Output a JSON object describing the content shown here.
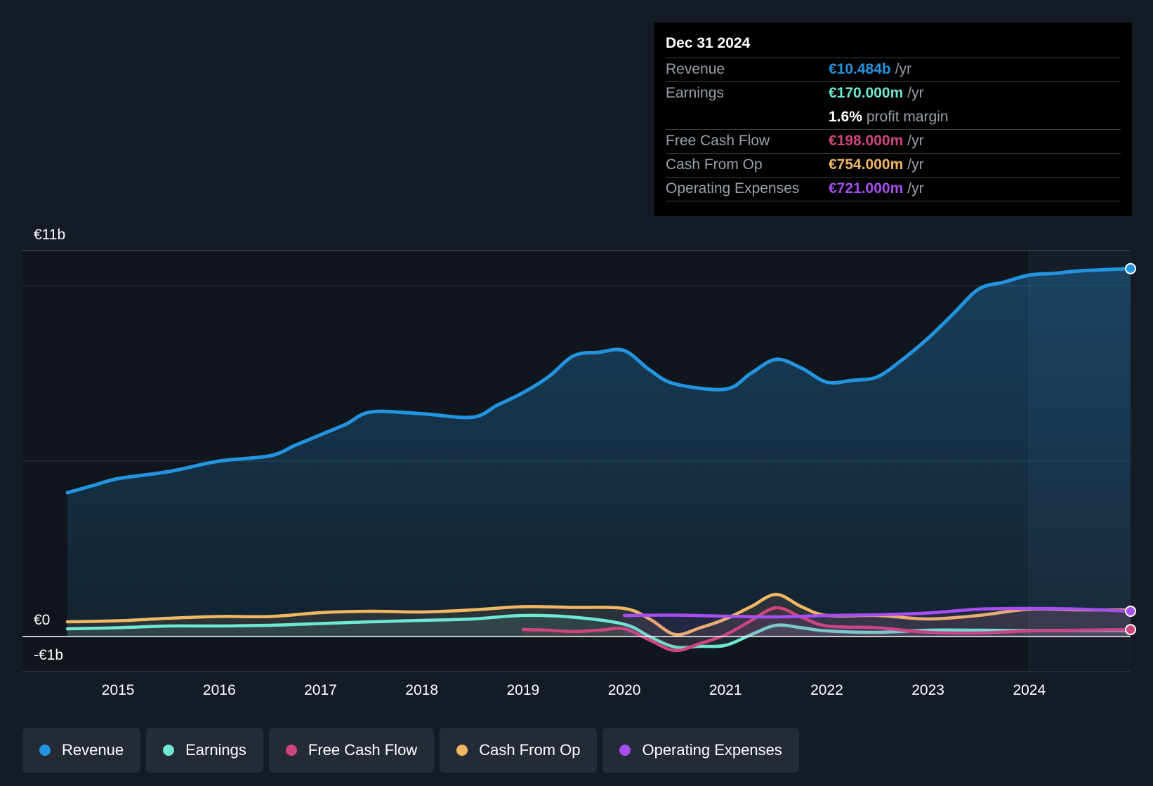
{
  "tooltip": {
    "date": "Dec 31 2024",
    "rows": [
      {
        "label": "Revenue",
        "value": "€10.484b",
        "unit": "/yr",
        "color": "#2394df"
      },
      {
        "label": "Earnings",
        "value": "€170.000m",
        "unit": "/yr",
        "color": "#6ee7d3"
      },
      {
        "label": "",
        "value": "1.6%",
        "unit": "profit margin",
        "color": "#ffffff"
      },
      {
        "label": "Free Cash Flow",
        "value": "€198.000m",
        "unit": "/yr",
        "color": "#d0457b"
      },
      {
        "label": "Cash From Op",
        "value": "€754.000m",
        "unit": "/yr",
        "color": "#f2b763"
      },
      {
        "label": "Operating Expenses",
        "value": "€721.000m",
        "unit": "/yr",
        "color": "#a54ff0"
      }
    ]
  },
  "legend": [
    {
      "label": "Revenue",
      "color": "#2394df"
    },
    {
      "label": "Earnings",
      "color": "#6ee7d3"
    },
    {
      "label": "Free Cash Flow",
      "color": "#d0457b"
    },
    {
      "label": "Cash From Op",
      "color": "#f2b763"
    },
    {
      "label": "Operating Expenses",
      "color": "#a54ff0"
    }
  ],
  "chart_data": {
    "type": "line",
    "title": "",
    "xlabel": "",
    "ylabel": "",
    "y_tick_labels": [
      "€11b",
      "€0",
      "-€1b"
    ],
    "x_tick_labels": [
      "2015",
      "2016",
      "2017",
      "2018",
      "2019",
      "2020",
      "2021",
      "2022",
      "2023",
      "2024"
    ],
    "xlim": [
      2014.5,
      2025.0
    ],
    "ylim": [
      -1,
      11
    ],
    "highlight_from": 2024.0,
    "series": [
      {
        "name": "Revenue",
        "color": "#2394df",
        "area": true,
        "x": [
          2014.5,
          2014.75,
          2015.0,
          2015.5,
          2016.0,
          2016.5,
          2016.75,
          2017.0,
          2017.25,
          2017.5,
          2018.0,
          2018.5,
          2018.75,
          2019.0,
          2019.25,
          2019.5,
          2019.75,
          2020.0,
          2020.25,
          2020.5,
          2021.0,
          2021.25,
          2021.5,
          2021.75,
          2022.0,
          2022.25,
          2022.5,
          2022.75,
          2023.0,
          2023.25,
          2023.5,
          2023.75,
          2024.0,
          2024.25,
          2024.5,
          2025.0
        ],
        "values": [
          4.1,
          4.3,
          4.5,
          4.7,
          5.0,
          5.15,
          5.45,
          5.75,
          6.05,
          6.4,
          6.35,
          6.25,
          6.6,
          6.95,
          7.4,
          8.0,
          8.1,
          8.15,
          7.6,
          7.2,
          7.05,
          7.5,
          7.9,
          7.65,
          7.25,
          7.3,
          7.4,
          7.9,
          8.5,
          9.2,
          9.9,
          10.1,
          10.3,
          10.35,
          10.42,
          10.484
        ]
      },
      {
        "name": "Cash From Op",
        "color": "#f2b763",
        "x": [
          2014.5,
          2015.0,
          2015.5,
          2016.0,
          2016.5,
          2017.0,
          2017.5,
          2018.0,
          2018.5,
          2019.0,
          2019.5,
          2020.0,
          2020.25,
          2020.5,
          2020.75,
          2021.0,
          2021.25,
          2021.5,
          2021.75,
          2022.0,
          2022.5,
          2023.0,
          2023.5,
          2024.0,
          2024.5,
          2025.0
        ],
        "values": [
          0.42,
          0.45,
          0.52,
          0.57,
          0.57,
          0.68,
          0.72,
          0.7,
          0.76,
          0.85,
          0.83,
          0.8,
          0.5,
          0.06,
          0.25,
          0.5,
          0.85,
          1.2,
          0.85,
          0.6,
          0.6,
          0.5,
          0.6,
          0.78,
          0.76,
          0.754
        ]
      },
      {
        "name": "Earnings",
        "color": "#6ee7d3",
        "x": [
          2014.5,
          2015.0,
          2015.5,
          2016.0,
          2016.5,
          2017.0,
          2017.5,
          2018.0,
          2018.5,
          2019.0,
          2019.5,
          2020.0,
          2020.25,
          2020.5,
          2020.75,
          2021.0,
          2021.25,
          2021.5,
          2021.75,
          2022.0,
          2022.5,
          2023.0,
          2023.5,
          2024.0,
          2024.5,
          2025.0
        ],
        "values": [
          0.22,
          0.25,
          0.3,
          0.3,
          0.32,
          0.37,
          0.42,
          0.46,
          0.5,
          0.6,
          0.55,
          0.35,
          0.0,
          -0.3,
          -0.28,
          -0.25,
          0.05,
          0.32,
          0.25,
          0.16,
          0.12,
          0.18,
          0.18,
          0.17,
          0.17,
          0.17
        ]
      },
      {
        "name": "Free Cash Flow",
        "color": "#d0457b",
        "x": [
          2019.0,
          2019.25,
          2019.5,
          2019.75,
          2020.0,
          2020.25,
          2020.5,
          2020.75,
          2021.0,
          2021.25,
          2021.5,
          2021.75,
          2022.0,
          2022.5,
          2023.0,
          2023.5,
          2024.0,
          2024.5,
          2025.0
        ],
        "values": [
          0.2,
          0.18,
          0.14,
          0.18,
          0.22,
          -0.1,
          -0.4,
          -0.2,
          0.05,
          0.45,
          0.82,
          0.55,
          0.3,
          0.25,
          0.12,
          0.1,
          0.16,
          0.18,
          0.198
        ]
      },
      {
        "name": "Operating Expenses",
        "color": "#a54ff0",
        "x": [
          2020.0,
          2020.5,
          2021.0,
          2021.5,
          2022.0,
          2022.5,
          2023.0,
          2023.5,
          2024.0,
          2024.5,
          2025.0
        ],
        "values": [
          0.6,
          0.61,
          0.58,
          0.56,
          0.6,
          0.62,
          0.67,
          0.78,
          0.8,
          0.78,
          0.721
        ]
      }
    ]
  }
}
